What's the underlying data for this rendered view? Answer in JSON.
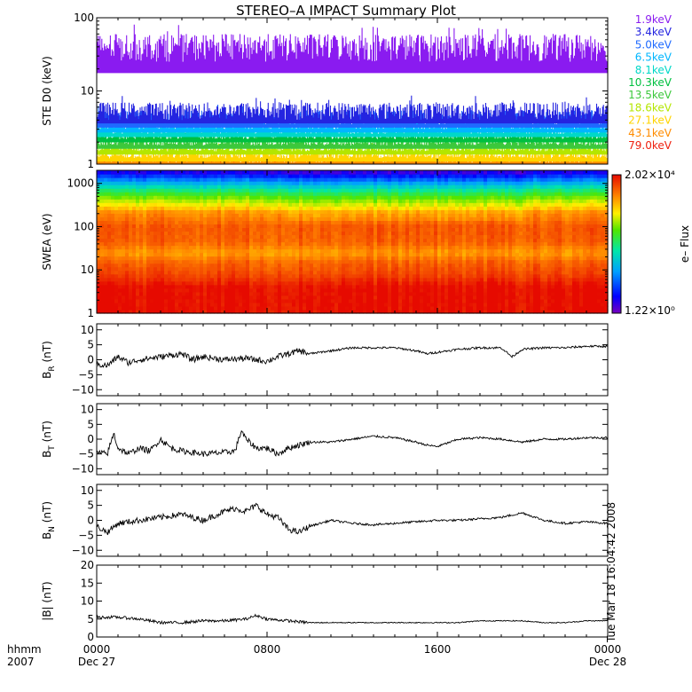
{
  "title": "STEREO–A IMPACT Summary Plot",
  "timestamp": "Tue Mar 18 16:04:42 2008",
  "x_axis": {
    "row1_label": "hhmm",
    "row2_label": "2007",
    "ticks": [
      {
        "hour": 0,
        "label": "0000",
        "date": "Dec 27"
      },
      {
        "hour": 8,
        "label": "0800",
        "date": ""
      },
      {
        "hour": 16,
        "label": "1600",
        "date": ""
      },
      {
        "hour": 24,
        "label": "0000",
        "date": "Dec 28"
      }
    ]
  },
  "colorbar": {
    "max_label": "2.02×10⁴",
    "min_label": "1.22×10⁰",
    "label": "e– Flux",
    "max": 20200,
    "min": 1.22
  },
  "chart_data": [
    {
      "type": "line",
      "panel": "ste",
      "ylabel": "STE D0 (keV)",
      "yscale": "log",
      "ylim": [
        1,
        100
      ],
      "yticks": [
        {
          "v": 1,
          "label": "1"
        },
        {
          "v": 10,
          "label": "10"
        },
        {
          "v": 100,
          "label": "100"
        }
      ],
      "x_range_hours": [
        0,
        24
      ],
      "series": [
        {
          "name": "1.9keV",
          "color": "#8a1bf0",
          "typical_range": [
            25,
            60
          ]
        },
        {
          "name": "3.4keV",
          "color": "#2424e0",
          "typical_range": [
            4,
            7
          ]
        },
        {
          "name": "5.0keV",
          "color": "#1f6aff",
          "typical_range": [
            3.5,
            5.5
          ]
        },
        {
          "name": "6.5keV",
          "color": "#00b6ff",
          "typical_range": [
            3,
            4
          ]
        },
        {
          "name": "8.1keV",
          "color": "#00d8c8",
          "typical_range": [
            2.6,
            3.2
          ]
        },
        {
          "name": "10.3keV",
          "color": "#00c040",
          "typical_range": [
            2.2,
            2.7
          ]
        },
        {
          "name": "13.5keV",
          "color": "#3cc83c",
          "typical_range": [
            1.8,
            2.2
          ]
        },
        {
          "name": "18.6keV",
          "color": "#b4e600",
          "typical_range": [
            1.5,
            1.8
          ]
        },
        {
          "name": "27.1keV",
          "color": "#ffd400",
          "typical_range": [
            1.2,
            1.5
          ]
        },
        {
          "name": "43.1keV",
          "color": "#ff8c00",
          "typical_range": [
            1.05,
            1.25
          ]
        },
        {
          "name": "79.0keV",
          "color": "#ee2010",
          "typical_range": [
            1,
            1.1
          ]
        }
      ]
    },
    {
      "type": "heatmap",
      "panel": "swea",
      "ylabel": "SWEA (eV)",
      "yscale": "log",
      "ylim": [
        1,
        2000
      ],
      "yticks": [
        {
          "v": 1,
          "label": "1"
        },
        {
          "v": 10,
          "label": "10"
        },
        {
          "v": 100,
          "label": "100"
        },
        {
          "v": 1000,
          "label": "1000"
        }
      ],
      "x_range_hours": [
        0,
        24
      ],
      "z_range": [
        1.22,
        20200
      ],
      "energy_profile": [
        {
          "energy_ev": 1.5,
          "log_flux": 4.3
        },
        {
          "energy_ev": 4,
          "log_flux": 4.3
        },
        {
          "energy_ev": 8,
          "log_flux": 4.0
        },
        {
          "energy_ev": 15,
          "log_flux": 3.85
        },
        {
          "energy_ev": 25,
          "log_flux": 3.55
        },
        {
          "energy_ev": 45,
          "log_flux": 3.85
        },
        {
          "energy_ev": 100,
          "log_flux": 3.9
        },
        {
          "energy_ev": 220,
          "log_flux": 3.6
        },
        {
          "energy_ev": 300,
          "log_flux": 3.2
        },
        {
          "energy_ev": 450,
          "log_flux": 2.8
        },
        {
          "energy_ev": 700,
          "log_flux": 2.2
        },
        {
          "energy_ev": 1100,
          "log_flux": 1.4
        },
        {
          "energy_ev": 1800,
          "log_flux": 0.5
        }
      ]
    },
    {
      "type": "line",
      "panel": "br",
      "ylabel_main": "B",
      "ylabel_sub": "R",
      "ylabel_unit": "(nT)",
      "ylim": [
        -12,
        12
      ],
      "yticks": [
        {
          "v": -10,
          "label": "−10"
        },
        {
          "v": -5,
          "label": "−5"
        },
        {
          "v": 0,
          "label": "0"
        },
        {
          "v": 5,
          "label": "5"
        },
        {
          "v": 10,
          "label": "10"
        }
      ],
      "x_hours": [
        0,
        0.5,
        1,
        1.5,
        2,
        3,
        4,
        4.5,
        5,
        6,
        7,
        8,
        8.5,
        9,
        9.5,
        10,
        11,
        12,
        13,
        14,
        14.5,
        15,
        15.5,
        16,
        17,
        18,
        19,
        19.5,
        20,
        21,
        22,
        23,
        24
      ],
      "values": [
        -1.5,
        -2,
        1,
        -1,
        0,
        1,
        2,
        0,
        1,
        0,
        0.5,
        -0.5,
        1,
        2,
        3,
        2,
        3,
        4,
        4,
        4,
        3.5,
        3,
        2,
        2.5,
        3.5,
        4,
        4,
        1,
        3.5,
        4,
        4,
        4.5,
        4.5
      ]
    },
    {
      "type": "line",
      "panel": "bt",
      "ylabel_main": "B",
      "ylabel_sub": "T",
      "ylabel_unit": "(nT)",
      "ylim": [
        -12,
        12
      ],
      "yticks": [
        {
          "v": -10,
          "label": "−10"
        },
        {
          "v": -5,
          "label": "−5"
        },
        {
          "v": 0,
          "label": "0"
        },
        {
          "v": 5,
          "label": "5"
        },
        {
          "v": 10,
          "label": "10"
        }
      ],
      "x_hours": [
        0,
        0.5,
        0.8,
        1,
        1.5,
        2,
        2.5,
        3,
        3.5,
        4,
        5,
        6,
        6.5,
        6.8,
        7,
        7.5,
        8,
        8.5,
        9,
        10,
        11,
        12,
        13,
        14,
        15,
        15.5,
        16,
        17,
        18,
        19,
        20,
        21,
        22,
        23,
        24
      ],
      "values": [
        -4.5,
        -5,
        2,
        -3,
        -5,
        -3,
        -4,
        0,
        -3,
        -4,
        -5,
        -4.5,
        -4,
        3,
        0,
        -3,
        -3,
        -5,
        -3,
        -1,
        -1,
        0,
        1,
        0.5,
        -1,
        -2,
        -2.5,
        0,
        0.5,
        0,
        -1,
        0,
        0,
        0.5,
        0.5
      ]
    },
    {
      "type": "line",
      "panel": "bn",
      "ylabel_main": "B",
      "ylabel_sub": "N",
      "ylabel_unit": "(nT)",
      "ylim": [
        -12,
        12
      ],
      "yticks": [
        {
          "v": -10,
          "label": "−10"
        },
        {
          "v": -5,
          "label": "−5"
        },
        {
          "v": 0,
          "label": "0"
        },
        {
          "v": 5,
          "label": "5"
        },
        {
          "v": 10,
          "label": "10"
        }
      ],
      "x_hours": [
        0,
        0.5,
        1,
        2,
        3,
        4,
        5,
        6,
        6.5,
        7,
        7.5,
        8,
        8.5,
        9,
        9.5,
        10,
        11,
        12,
        13,
        14,
        15,
        16,
        17,
        18,
        19,
        20,
        21,
        22,
        23,
        24
      ],
      "values": [
        -2,
        -4,
        -1,
        0,
        1,
        2,
        0,
        3,
        4,
        3,
        5,
        2,
        1,
        -3,
        -4,
        -2,
        0,
        -1,
        -1.5,
        -1,
        -0.5,
        0,
        0,
        0.5,
        1,
        2.5,
        0,
        -1,
        -0.5,
        -1
      ]
    },
    {
      "type": "line",
      "panel": "bmag",
      "ylabel": "|B| (nT)",
      "ylim": [
        0,
        20
      ],
      "yticks": [
        {
          "v": 0,
          "label": "0"
        },
        {
          "v": 5,
          "label": "5"
        },
        {
          "v": 10,
          "label": "10"
        },
        {
          "v": 15,
          "label": "15"
        },
        {
          "v": 20,
          "label": "20"
        }
      ],
      "x_hours": [
        0,
        1,
        2,
        3,
        4,
        5,
        6,
        7,
        7.5,
        8,
        9,
        10,
        11,
        12,
        13,
        14,
        15,
        16,
        17,
        18,
        19,
        20,
        21,
        22,
        23,
        24
      ],
      "values": [
        5.5,
        5.5,
        5,
        4,
        4,
        4.5,
        4.5,
        5,
        6,
        5,
        4.5,
        4,
        4,
        4,
        4,
        4,
        4,
        4,
        4,
        4.5,
        4.5,
        4.5,
        4,
        4,
        4.5,
        4.5
      ]
    }
  ]
}
